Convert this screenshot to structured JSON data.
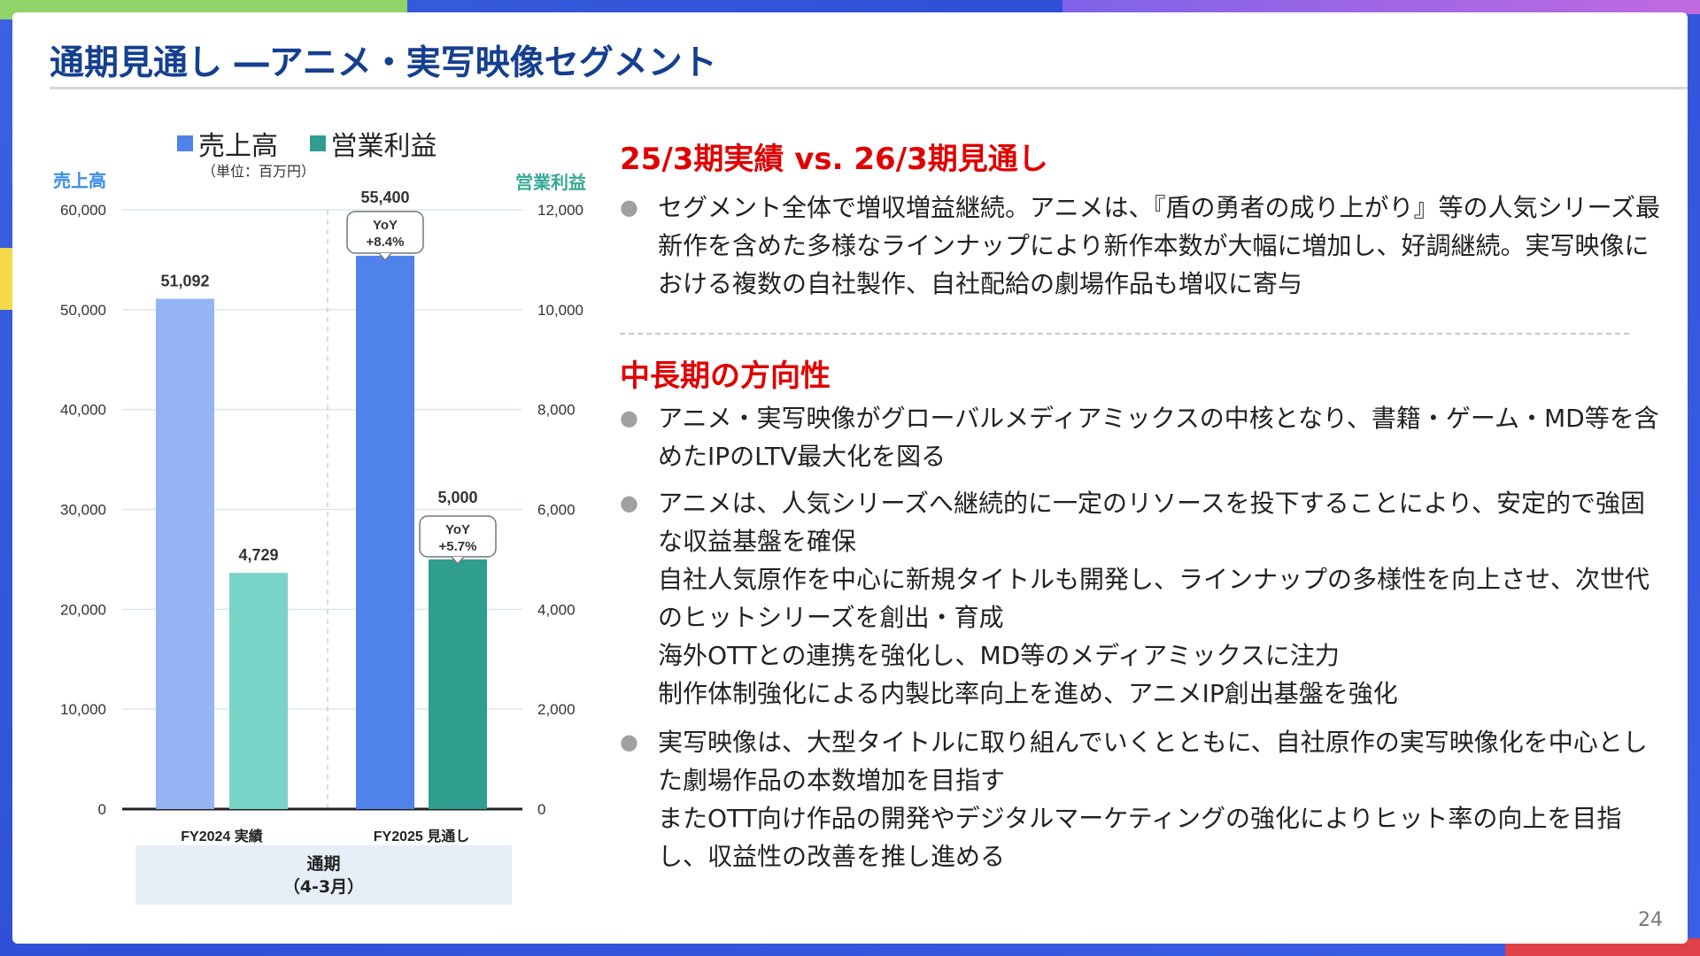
{
  "slide": {
    "title": "通期見通し ―アニメ・実写映像セグメント",
    "page_number": "24"
  },
  "chart_data": {
    "type": "bar",
    "categories": [
      "FY2024 実績",
      "FY2025 見通し"
    ],
    "group_label_line1": "通期",
    "group_label_line2": "（4-3月）",
    "unit_note": "（単位：百万円）",
    "ylabel_left": "売上高",
    "ylabel_right": "営業利益",
    "ylim_left": [
      0,
      60000
    ],
    "ylim_right": [
      0,
      12000
    ],
    "yticks_left": [
      "0",
      "10,000",
      "20,000",
      "30,000",
      "40,000",
      "50,000",
      "60,000"
    ],
    "yticks_right": [
      "0",
      "2,000",
      "4,000",
      "6,000",
      "8,000",
      "10,000",
      "12,000"
    ],
    "series": [
      {
        "name": "売上高",
        "axis": "left",
        "values": [
          51092,
          55400
        ],
        "labels": [
          "51,092",
          "55,400"
        ],
        "colors": [
          "#94b4f3",
          "#4f82ea"
        ]
      },
      {
        "name": "営業利益",
        "axis": "right",
        "values": [
          4729,
          5000
        ],
        "labels": [
          "4,729",
          "5,000"
        ],
        "colors": [
          "#79d4c8",
          "#2f9e8f"
        ]
      }
    ],
    "yoy_callouts": [
      {
        "series": "売上高",
        "line1": "YoY",
        "line2": "+8.4%"
      },
      {
        "series": "営業利益",
        "line1": "YoY",
        "line2": "+5.7%"
      }
    ],
    "grid": true,
    "legend_position": "top"
  },
  "panel": {
    "heading1": "25/3期実績 vs. 26/3期見通し",
    "bullet1": "セグメント全体で増収増益継続。アニメは、『盾の勇者の成り上がり』等の人気シリーズ最新作を含めた多様なラインナップにより新作本数が大幅に増加し、好調継続。実写映像における複数の自社製作、自社配給の劇場作品も増収に寄与",
    "heading2": "中長期の方向性",
    "bullet2": "アニメ・実写映像がグローバルメディアミックスの中核となり、書籍・ゲーム・MD等を含めたIPのLTV最大化を図る",
    "bullet3_lines": [
      "アニメは、人気シリーズへ継続的に一定のリソースを投下することにより、安定的で強固な収益基盤を確保",
      "自社人気原作を中心に新規タイトルも開発し、ラインナップの多様性を向上させ、次世代のヒットシリーズを創出・育成",
      "海外OTTとの連携を強化し、MD等のメディアミックスに注力",
      "制作体制強化による内製比率向上を進め、アニメIP創出基盤を強化"
    ],
    "bullet4_lines": [
      "実写映像は、大型タイトルに取り組んでいくとともに、自社原作の実写映像化を中心とした劇場作品の本数増加を目指す",
      "またOTT向け作品の開発やデジタルマーケティングの強化によりヒット率の向上を目指し、収益性の改善を推し進める"
    ],
    "bullet_symbol": "●"
  }
}
